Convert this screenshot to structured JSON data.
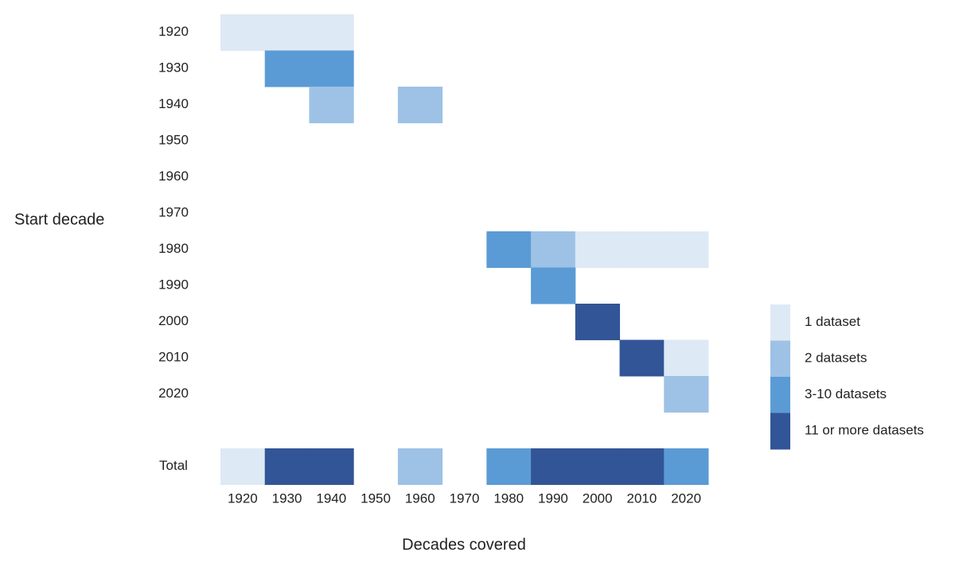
{
  "chart_data": {
    "type": "heatmap",
    "x_label": "Decades covered",
    "y_label": "Start decade",
    "columns": [
      "1920",
      "1930",
      "1940",
      "1950",
      "1960",
      "1970",
      "1980",
      "1990",
      "2000",
      "2010",
      "2020"
    ],
    "rows": [
      "1920",
      "1930",
      "1940",
      "1950",
      "1960",
      "1970",
      "1980",
      "1990",
      "2000",
      "2010",
      "2020"
    ],
    "values": [
      [
        1,
        1,
        1,
        null,
        null,
        null,
        null,
        null,
        null,
        null,
        null
      ],
      [
        null,
        3,
        3,
        null,
        null,
        null,
        null,
        null,
        null,
        null,
        null
      ],
      [
        null,
        null,
        2,
        null,
        2,
        null,
        null,
        null,
        null,
        null,
        null
      ],
      [
        null,
        null,
        null,
        null,
        null,
        null,
        null,
        null,
        null,
        null,
        null
      ],
      [
        null,
        null,
        null,
        null,
        null,
        null,
        null,
        null,
        null,
        null,
        null
      ],
      [
        null,
        null,
        null,
        null,
        null,
        null,
        null,
        null,
        null,
        null,
        null
      ],
      [
        null,
        null,
        null,
        null,
        null,
        null,
        3,
        2,
        1,
        1,
        1
      ],
      [
        null,
        null,
        null,
        null,
        null,
        null,
        null,
        3,
        null,
        null,
        null
      ],
      [
        null,
        null,
        null,
        null,
        null,
        null,
        null,
        null,
        4,
        null,
        null
      ],
      [
        null,
        null,
        null,
        null,
        null,
        null,
        null,
        null,
        null,
        4,
        1
      ],
      [
        null,
        null,
        null,
        null,
        null,
        null,
        null,
        null,
        null,
        null,
        2
      ]
    ],
    "total_label": "Total",
    "total_values": [
      1,
      4,
      4,
      null,
      2,
      null,
      3,
      4,
      4,
      4,
      3
    ],
    "legend": [
      {
        "level": 1,
        "name": "1 dataset",
        "color": "#dde9f5"
      },
      {
        "level": 2,
        "name": "2 datasets",
        "color": "#9dc2e6"
      },
      {
        "level": 3,
        "name": "3-10 datasets",
        "color": "#5b9bd5"
      },
      {
        "level": 4,
        "name": "11 or more datasets",
        "color": "#325597"
      }
    ]
  }
}
